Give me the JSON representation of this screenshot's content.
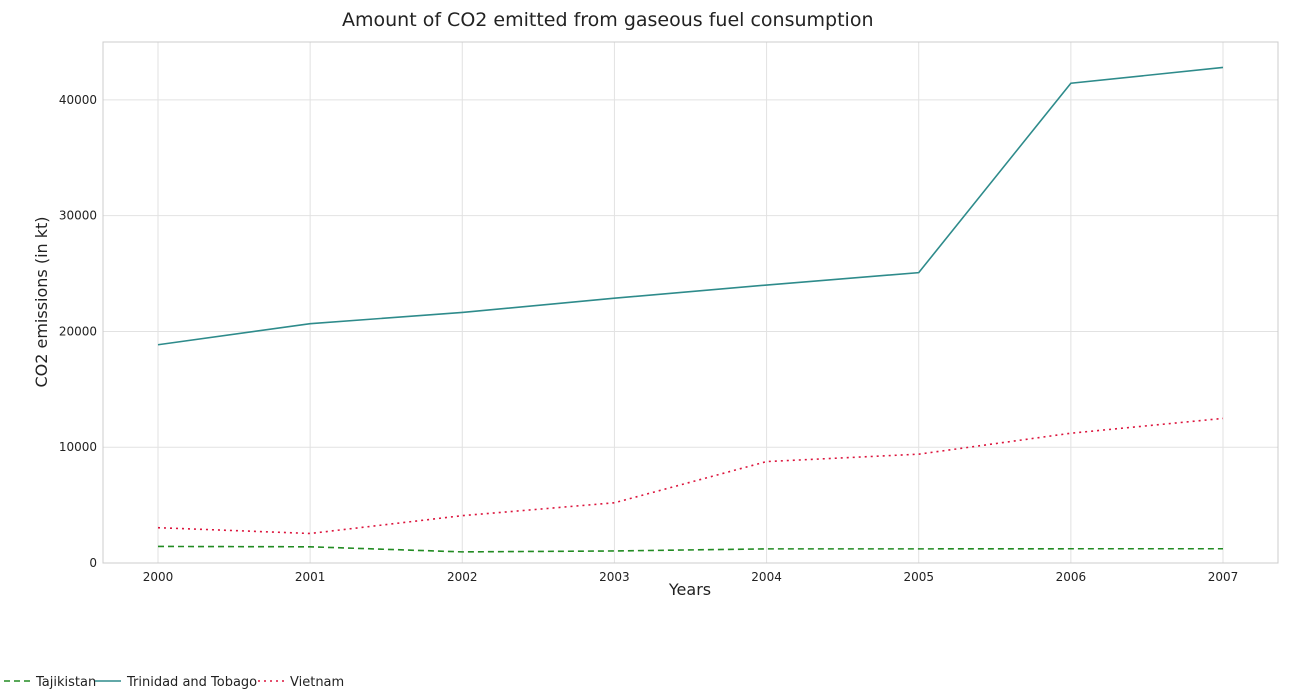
{
  "chart_data": {
    "type": "line",
    "title": "Amount of CO2 emitted from gaseous fuel consumption",
    "xlabel": "Years",
    "ylabel": "CO2 emissions (in kt)",
    "categories": [
      "2000",
      "2001",
      "2002",
      "2003",
      "2004",
      "2005",
      "2006",
      "2007"
    ],
    "ylim": [
      0,
      45000
    ],
    "yticks": [
      0,
      10000,
      20000,
      30000,
      40000
    ],
    "ytick_labels": [
      "0",
      "10000",
      "20000",
      "30000",
      "40000"
    ],
    "grid": true,
    "legend_position": "bottom-left",
    "series": [
      {
        "name": "Tajikistan",
        "color": "#228b22",
        "dash": "6,4",
        "values": [
          1430,
          1400,
          960,
          1040,
          1220,
          1220,
          1230,
          1230
        ]
      },
      {
        "name": "Trinidad and Tobago",
        "color": "#2e8b8b",
        "dash": "",
        "values": [
          18850,
          20670,
          21640,
          22870,
          24010,
          25080,
          41440,
          42800
        ]
      },
      {
        "name": "Vietnam",
        "color": "#dc143c",
        "dash": "2,4",
        "values": [
          3050,
          2550,
          4090,
          5200,
          8760,
          9400,
          11210,
          12490
        ]
      }
    ]
  }
}
